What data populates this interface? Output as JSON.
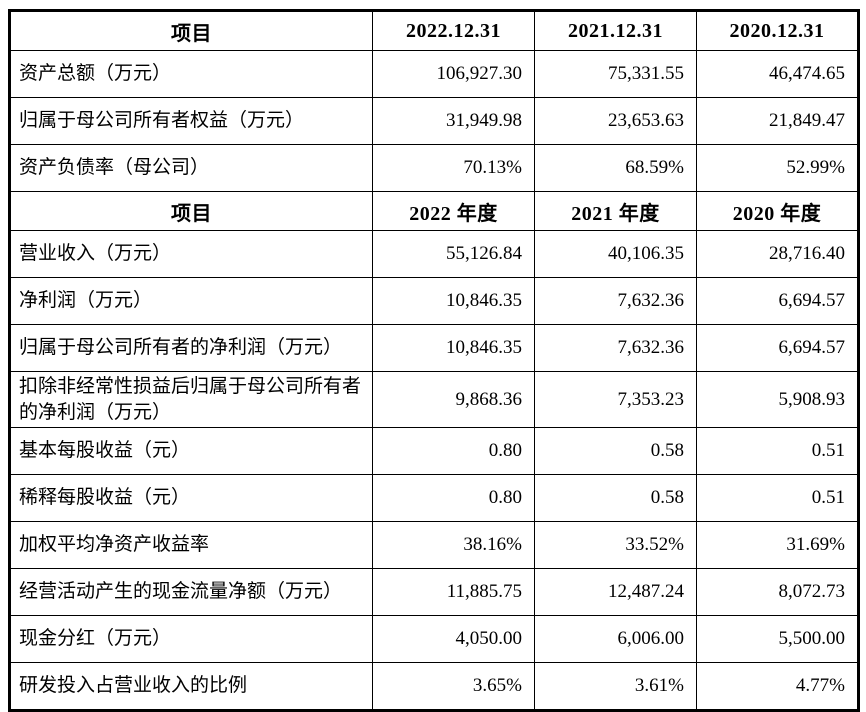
{
  "table": {
    "sections": [
      {
        "header": {
          "item": "项目",
          "cols": [
            "2022.12.31",
            "2021.12.31",
            "2020.12.31"
          ]
        },
        "rows": [
          {
            "label": "资产总额（万元）",
            "values": [
              "106,927.30",
              "75,331.55",
              "46,474.65"
            ]
          },
          {
            "label": "归属于母公司所有者权益（万元）",
            "values": [
              "31,949.98",
              "23,653.63",
              "21,849.47"
            ]
          },
          {
            "label": "资产负债率（母公司）",
            "values": [
              "70.13%",
              "68.59%",
              "52.99%"
            ]
          }
        ]
      },
      {
        "header": {
          "item": "项目",
          "cols": [
            "2022 年度",
            "2021 年度",
            "2020 年度"
          ]
        },
        "rows": [
          {
            "label": "营业收入（万元）",
            "values": [
              "55,126.84",
              "40,106.35",
              "28,716.40"
            ]
          },
          {
            "label": "净利润（万元）",
            "values": [
              "10,846.35",
              "7,632.36",
              "6,694.57"
            ]
          },
          {
            "label": "归属于母公司所有者的净利润（万元）",
            "values": [
              "10,846.35",
              "7,632.36",
              "6,694.57"
            ]
          },
          {
            "label": "扣除非经常性损益后归属于母公司所有者的净利润（万元）",
            "values": [
              "9,868.36",
              "7,353.23",
              "5,908.93"
            ]
          },
          {
            "label": "基本每股收益（元）",
            "values": [
              "0.80",
              "0.58",
              "0.51"
            ]
          },
          {
            "label": "稀释每股收益（元）",
            "values": [
              "0.80",
              "0.58",
              "0.51"
            ]
          },
          {
            "label": "加权平均净资产收益率",
            "values": [
              "38.16%",
              "33.52%",
              "31.69%"
            ]
          },
          {
            "label": "经营活动产生的现金流量净额（万元）",
            "values": [
              "11,885.75",
              "12,487.24",
              "8,072.73"
            ]
          },
          {
            "label": "现金分红（万元）",
            "values": [
              "4,050.00",
              "6,006.00",
              "5,500.00"
            ]
          },
          {
            "label": "研发投入占营业收入的比例",
            "values": [
              "3.65%",
              "3.61%",
              "4.77%"
            ]
          }
        ]
      }
    ]
  }
}
